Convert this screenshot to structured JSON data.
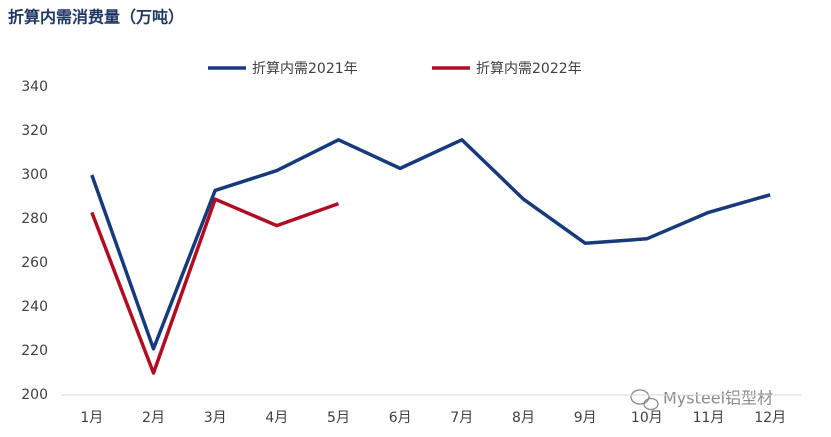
{
  "chart_data": {
    "type": "line",
    "title": "折算内需消费量（万吨）",
    "categories": [
      "1月",
      "2月",
      "3月",
      "4月",
      "5月",
      "6月",
      "7月",
      "8月",
      "9月",
      "10月",
      "11月",
      "12月"
    ],
    "series": [
      {
        "name": "折算内需2021年",
        "color": "#163a7c",
        "values": [
          300,
          221,
          293,
          302,
          316,
          303,
          316,
          289,
          269,
          271,
          283,
          291
        ]
      },
      {
        "name": "折算内需2022年",
        "color": "#b00d23",
        "values": [
          283,
          210,
          289,
          277,
          287,
          null,
          null,
          null,
          null,
          null,
          null,
          null
        ]
      }
    ],
    "ylim": [
      200,
      340
    ],
    "yticks": [
      200,
      220,
      240,
      260,
      280,
      300,
      320,
      340
    ],
    "grid": false,
    "legend": "top",
    "annotation": "Mysteel铝型材"
  }
}
